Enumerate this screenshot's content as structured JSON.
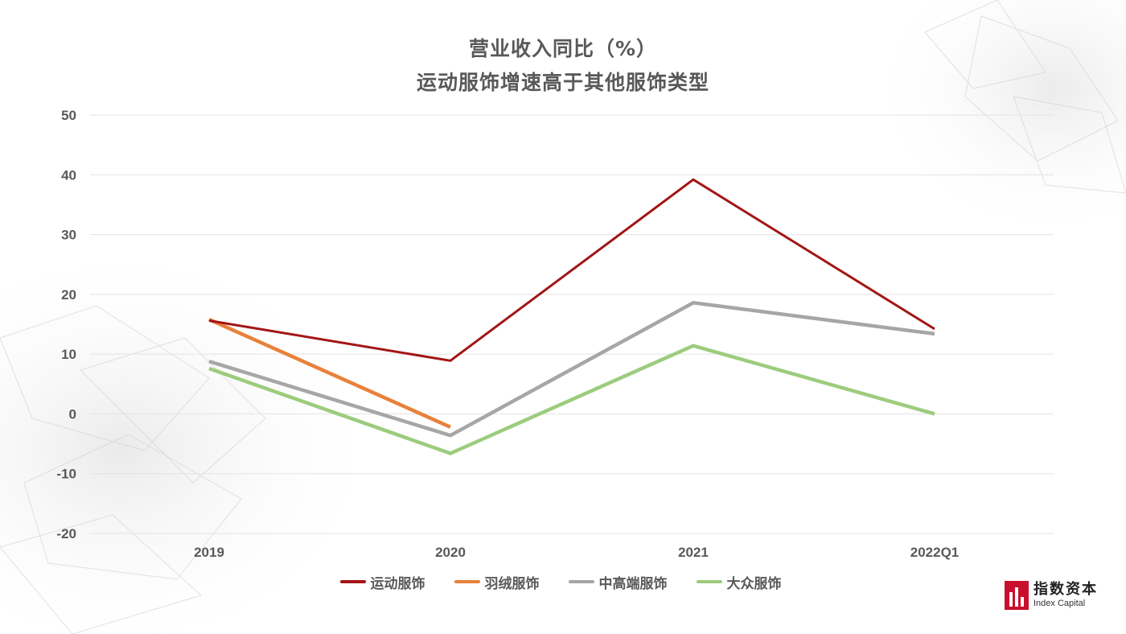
{
  "title": {
    "line1": "营业收入同比（%）",
    "line2": "运动服饰增速高于其他服饰类型"
  },
  "chart_data": {
    "type": "line",
    "title": "营业收入同比（%） 运动服饰增速高于其他服饰类型",
    "categories": [
      "2019",
      "2020",
      "2021",
      "2022Q1"
    ],
    "ylim": [
      -20,
      50
    ],
    "yticks": [
      50,
      40,
      30,
      20,
      10,
      0,
      -10,
      -20
    ],
    "grid": true,
    "legend_position": "bottom",
    "series": [
      {
        "name": "运动服饰",
        "color": "#a31515",
        "values": [
          15.6,
          8.9,
          39.2,
          14.2
        ]
      },
      {
        "name": "羽绒服饰",
        "color": "#e8813a",
        "values": [
          15.8,
          -2.2,
          null,
          null
        ]
      },
      {
        "name": "中高端服饰",
        "color": "#a6a6a6",
        "values": [
          8.8,
          -3.6,
          18.6,
          13.4
        ]
      },
      {
        "name": "大众服饰",
        "color": "#9ccc7d",
        "values": [
          7.6,
          -6.6,
          11.4,
          0.0
        ]
      }
    ]
  },
  "logo": {
    "name_cn": "指数资本",
    "name_en": "Index Capital",
    "color": "#c8102e"
  }
}
